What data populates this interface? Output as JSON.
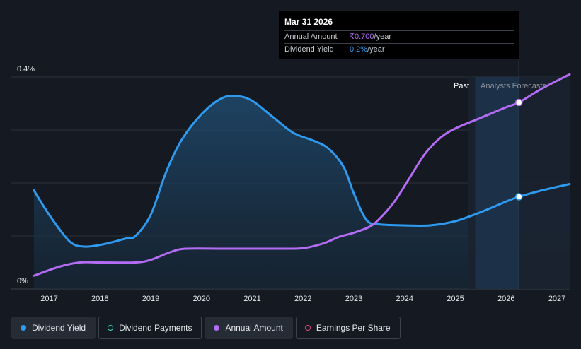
{
  "tooltip": {
    "date": "Mar 31 2026",
    "rows": [
      {
        "label": "Annual Amount",
        "value": "₹0.700",
        "unit": "/year"
      },
      {
        "label": "Dividend Yield",
        "value": "0.2%",
        "unit": "/year"
      }
    ]
  },
  "zones": {
    "past": "Past",
    "forecast": "Analysts Forecasts"
  },
  "legend": [
    {
      "label": "Dividend Yield",
      "color": "#2e9bf0",
      "filled": true
    },
    {
      "label": "Dividend Payments",
      "color": "#3fd9c4",
      "filled": false
    },
    {
      "label": "Annual Amount",
      "color": "#b46cf5",
      "filled": true
    },
    {
      "label": "Earnings Per Share",
      "color": "#e0457b",
      "filled": false
    }
  ],
  "chart_data": {
    "type": "line",
    "x_ticks": [
      "2017",
      "2018",
      "2019",
      "2020",
      "2021",
      "2022",
      "2023",
      "2024",
      "2025",
      "2026",
      "2027"
    ],
    "y_ticks": [
      "0%",
      "0.4%"
    ],
    "ylim": [
      0,
      0.4
    ],
    "xlim": [
      2016.7,
      2027.25
    ],
    "forecast_start": 2025.25,
    "highlight_x": 2026.25,
    "series": [
      {
        "name": "Dividend Yield",
        "color": "#2e9bf0",
        "filled": true,
        "points": [
          [
            2016.7,
            0.186
          ],
          [
            2017.0,
            0.14
          ],
          [
            2017.4,
            0.09
          ],
          [
            2017.7,
            0.08
          ],
          [
            2018.1,
            0.085
          ],
          [
            2018.5,
            0.095
          ],
          [
            2018.7,
            0.1
          ],
          [
            2019.0,
            0.14
          ],
          [
            2019.3,
            0.22
          ],
          [
            2019.6,
            0.28
          ],
          [
            2020.0,
            0.33
          ],
          [
            2020.4,
            0.36
          ],
          [
            2020.7,
            0.364
          ],
          [
            2021.0,
            0.355
          ],
          [
            2021.4,
            0.325
          ],
          [
            2021.8,
            0.295
          ],
          [
            2022.2,
            0.28
          ],
          [
            2022.5,
            0.265
          ],
          [
            2022.8,
            0.23
          ],
          [
            2023.0,
            0.18
          ],
          [
            2023.25,
            0.13
          ],
          [
            2023.5,
            0.122
          ],
          [
            2024.0,
            0.12
          ],
          [
            2024.5,
            0.12
          ],
          [
            2025.0,
            0.128
          ],
          [
            2025.5,
            0.145
          ],
          [
            2026.0,
            0.165
          ],
          [
            2026.25,
            0.174
          ],
          [
            2026.7,
            0.186
          ],
          [
            2027.25,
            0.198
          ]
        ]
      },
      {
        "name": "Annual Amount",
        "color": "#b46cf5",
        "filled": false,
        "points": [
          [
            2016.7,
            0.025
          ],
          [
            2017.2,
            0.042
          ],
          [
            2017.6,
            0.05
          ],
          [
            2018.0,
            0.05
          ],
          [
            2018.7,
            0.05
          ],
          [
            2019.0,
            0.055
          ],
          [
            2019.4,
            0.07
          ],
          [
            2019.7,
            0.076
          ],
          [
            2020.5,
            0.076
          ],
          [
            2021.5,
            0.076
          ],
          [
            2022.0,
            0.077
          ],
          [
            2022.4,
            0.086
          ],
          [
            2022.7,
            0.098
          ],
          [
            2023.0,
            0.106
          ],
          [
            2023.3,
            0.117
          ],
          [
            2023.5,
            0.132
          ],
          [
            2023.8,
            0.165
          ],
          [
            2024.1,
            0.21
          ],
          [
            2024.4,
            0.255
          ],
          [
            2024.7,
            0.285
          ],
          [
            2025.0,
            0.303
          ],
          [
            2025.5,
            0.323
          ],
          [
            2026.0,
            0.343
          ],
          [
            2026.25,
            0.352
          ],
          [
            2026.7,
            0.378
          ],
          [
            2027.25,
            0.405
          ]
        ]
      }
    ]
  }
}
